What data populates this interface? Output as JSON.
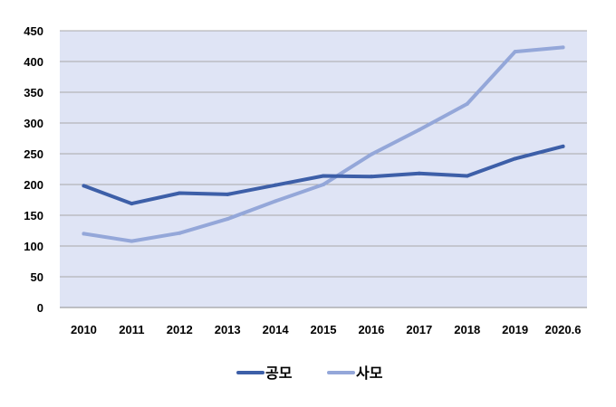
{
  "chart_data": {
    "type": "line",
    "title": "",
    "xlabel": "",
    "ylabel": "",
    "categories": [
      "2010",
      "2011",
      "2012",
      "2013",
      "2014",
      "2015",
      "2016",
      "2017",
      "2018",
      "2019",
      "2020.6"
    ],
    "series": [
      {
        "name": "공모",
        "color": "#3d5fa8",
        "values": [
          198,
          169,
          186,
          184,
          199,
          214,
          213,
          218,
          214,
          242,
          262
        ]
      },
      {
        "name": "사모",
        "color": "#94a7d9",
        "values": [
          120,
          108,
          121,
          144,
          173,
          200,
          249,
          289,
          331,
          416,
          423
        ]
      }
    ],
    "ylim": [
      0,
      450
    ],
    "yticks": [
      0,
      50,
      100,
      150,
      200,
      250,
      300,
      350,
      400,
      450
    ],
    "grid": true,
    "plot_background": "#dfe4f5",
    "legend_position": "bottom"
  }
}
